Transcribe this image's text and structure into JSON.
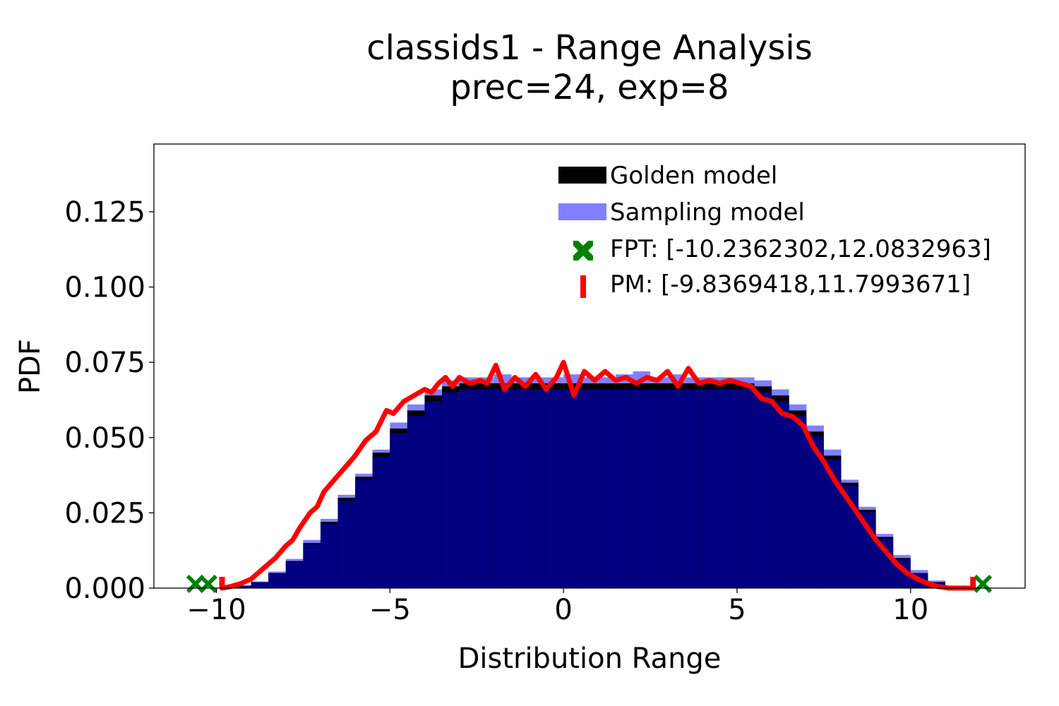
{
  "chart_data": {
    "type": "bar",
    "title": "classids1 - Range Analysis",
    "subtitle": "prec=24, exp=8",
    "xlabel": "Distribution Range",
    "ylabel": "PDF",
    "xlim": [
      -11.8,
      13.3
    ],
    "ylim": [
      0,
      0.1475
    ],
    "x_ticks": [
      -10,
      -5,
      0,
      5,
      10
    ],
    "x_tick_labels": [
      "−10",
      "−5",
      "0",
      "5",
      "10"
    ],
    "y_ticks": [
      0,
      0.025,
      0.05,
      0.075,
      0.1,
      0.125
    ],
    "y_tick_labels": [
      "0.000",
      "0.025",
      "0.050",
      "0.075",
      "0.100",
      "0.125"
    ],
    "grid": false,
    "legend_position": "top-right",
    "legend": {
      "golden": "Golden model",
      "sampling": "Sampling model",
      "fpt": "FPT: [-10.2362302,12.0832963]",
      "pm": "PM: [-9.8369418,11.7993671]"
    },
    "colors": {
      "golden": "#000000",
      "sampling": "#8080ff",
      "overlap": "#000080",
      "curve": "#ff0000",
      "fpt": "#008000",
      "pm": "#ff0000"
    },
    "series": [
      {
        "name": "Golden model",
        "x": [
          -10,
          -9.5,
          -9,
          -8.5,
          -8,
          -7.5,
          -7,
          -6.5,
          -6,
          -5.5,
          -5,
          -4.5,
          -4,
          -3.5,
          -3,
          -2.5,
          -2,
          -1.5,
          -1,
          -0.5,
          0,
          0.5,
          1,
          1.5,
          2,
          2.5,
          3,
          3.5,
          4,
          4.5,
          5,
          5.5,
          6,
          6.5,
          7,
          7.5,
          8,
          8.5,
          9,
          9.5,
          10,
          10.5,
          11,
          11.5
        ],
        "y": [
          0.0,
          0.0008,
          0.002,
          0.005,
          0.009,
          0.015,
          0.022,
          0.03,
          0.037,
          0.045,
          0.053,
          0.059,
          0.064,
          0.067,
          0.068,
          0.068,
          0.068,
          0.068,
          0.068,
          0.068,
          0.068,
          0.068,
          0.068,
          0.068,
          0.068,
          0.068,
          0.068,
          0.068,
          0.068,
          0.068,
          0.068,
          0.067,
          0.064,
          0.059,
          0.052,
          0.044,
          0.035,
          0.026,
          0.017,
          0.01,
          0.005,
          0.002,
          0.0005,
          0.0
        ]
      },
      {
        "name": "Sampling model",
        "x": [
          -10,
          -9.5,
          -9,
          -8.5,
          -8,
          -7.5,
          -7,
          -6.5,
          -6,
          -5.5,
          -5,
          -4.5,
          -4,
          -3.5,
          -3,
          -2.5,
          -2,
          -1.5,
          -1,
          -0.5,
          0,
          0.5,
          1,
          1.5,
          2,
          2.5,
          3,
          3.5,
          4,
          4.5,
          5,
          5.5,
          6,
          6.5,
          7,
          7.5,
          8,
          8.5,
          9,
          9.5,
          10,
          10.5,
          11,
          11.5
        ],
        "y": [
          0.0,
          0.0009,
          0.0022,
          0.0055,
          0.0097,
          0.016,
          0.023,
          0.031,
          0.038,
          0.046,
          0.055,
          0.061,
          0.066,
          0.069,
          0.07,
          0.07,
          0.071,
          0.07,
          0.07,
          0.07,
          0.071,
          0.07,
          0.07,
          0.071,
          0.072,
          0.07,
          0.071,
          0.07,
          0.07,
          0.07,
          0.07,
          0.069,
          0.066,
          0.061,
          0.054,
          0.046,
          0.036,
          0.027,
          0.018,
          0.011,
          0.006,
          0.0025,
          0.0007,
          0.0
        ]
      },
      {
        "name": "curve",
        "x": [
          -9.84,
          -9.6,
          -9.3,
          -9.0,
          -8.7,
          -8.5,
          -8.3,
          -8.0,
          -7.8,
          -7.6,
          -7.3,
          -7.1,
          -6.9,
          -6.6,
          -6.3,
          -6.0,
          -5.7,
          -5.4,
          -5.1,
          -4.9,
          -4.6,
          -4.3,
          -4.0,
          -3.8,
          -3.6,
          -3.4,
          -3.2,
          -3.0,
          -2.7,
          -2.4,
          -2.2,
          -1.95,
          -1.7,
          -1.4,
          -1.1,
          -0.8,
          -0.5,
          -0.2,
          0.0,
          0.3,
          0.6,
          0.9,
          1.2,
          1.5,
          1.8,
          2.1,
          2.4,
          2.7,
          3.0,
          3.3,
          3.6,
          3.9,
          4.2,
          4.5,
          4.8,
          5.1,
          5.4,
          5.7,
          6.0,
          6.3,
          6.6,
          6.9,
          7.2,
          7.5,
          7.8,
          8.1,
          8.4,
          8.7,
          9.0,
          9.3,
          9.6,
          9.9,
          10.2,
          10.5,
          10.8,
          11.1,
          11.4,
          11.8
        ],
        "y": [
          0.0,
          0.0005,
          0.0015,
          0.003,
          0.006,
          0.008,
          0.01,
          0.014,
          0.016,
          0.02,
          0.025,
          0.027,
          0.032,
          0.036,
          0.04,
          0.044,
          0.049,
          0.052,
          0.059,
          0.058,
          0.062,
          0.064,
          0.066,
          0.065,
          0.068,
          0.07,
          0.067,
          0.07,
          0.068,
          0.069,
          0.068,
          0.074,
          0.066,
          0.07,
          0.067,
          0.071,
          0.066,
          0.07,
          0.075,
          0.064,
          0.072,
          0.069,
          0.072,
          0.069,
          0.07,
          0.068,
          0.07,
          0.069,
          0.072,
          0.067,
          0.073,
          0.068,
          0.069,
          0.068,
          0.069,
          0.068,
          0.067,
          0.063,
          0.062,
          0.058,
          0.057,
          0.054,
          0.047,
          0.042,
          0.036,
          0.031,
          0.026,
          0.021,
          0.016,
          0.012,
          0.008,
          0.005,
          0.003,
          0.0015,
          0.0005,
          0.0,
          0.0,
          0.0
        ]
      }
    ],
    "markers": {
      "fpt": [
        -10.2362302,
        12.0832963
      ],
      "pm": [
        -9.8369418,
        11.7993671
      ]
    }
  }
}
